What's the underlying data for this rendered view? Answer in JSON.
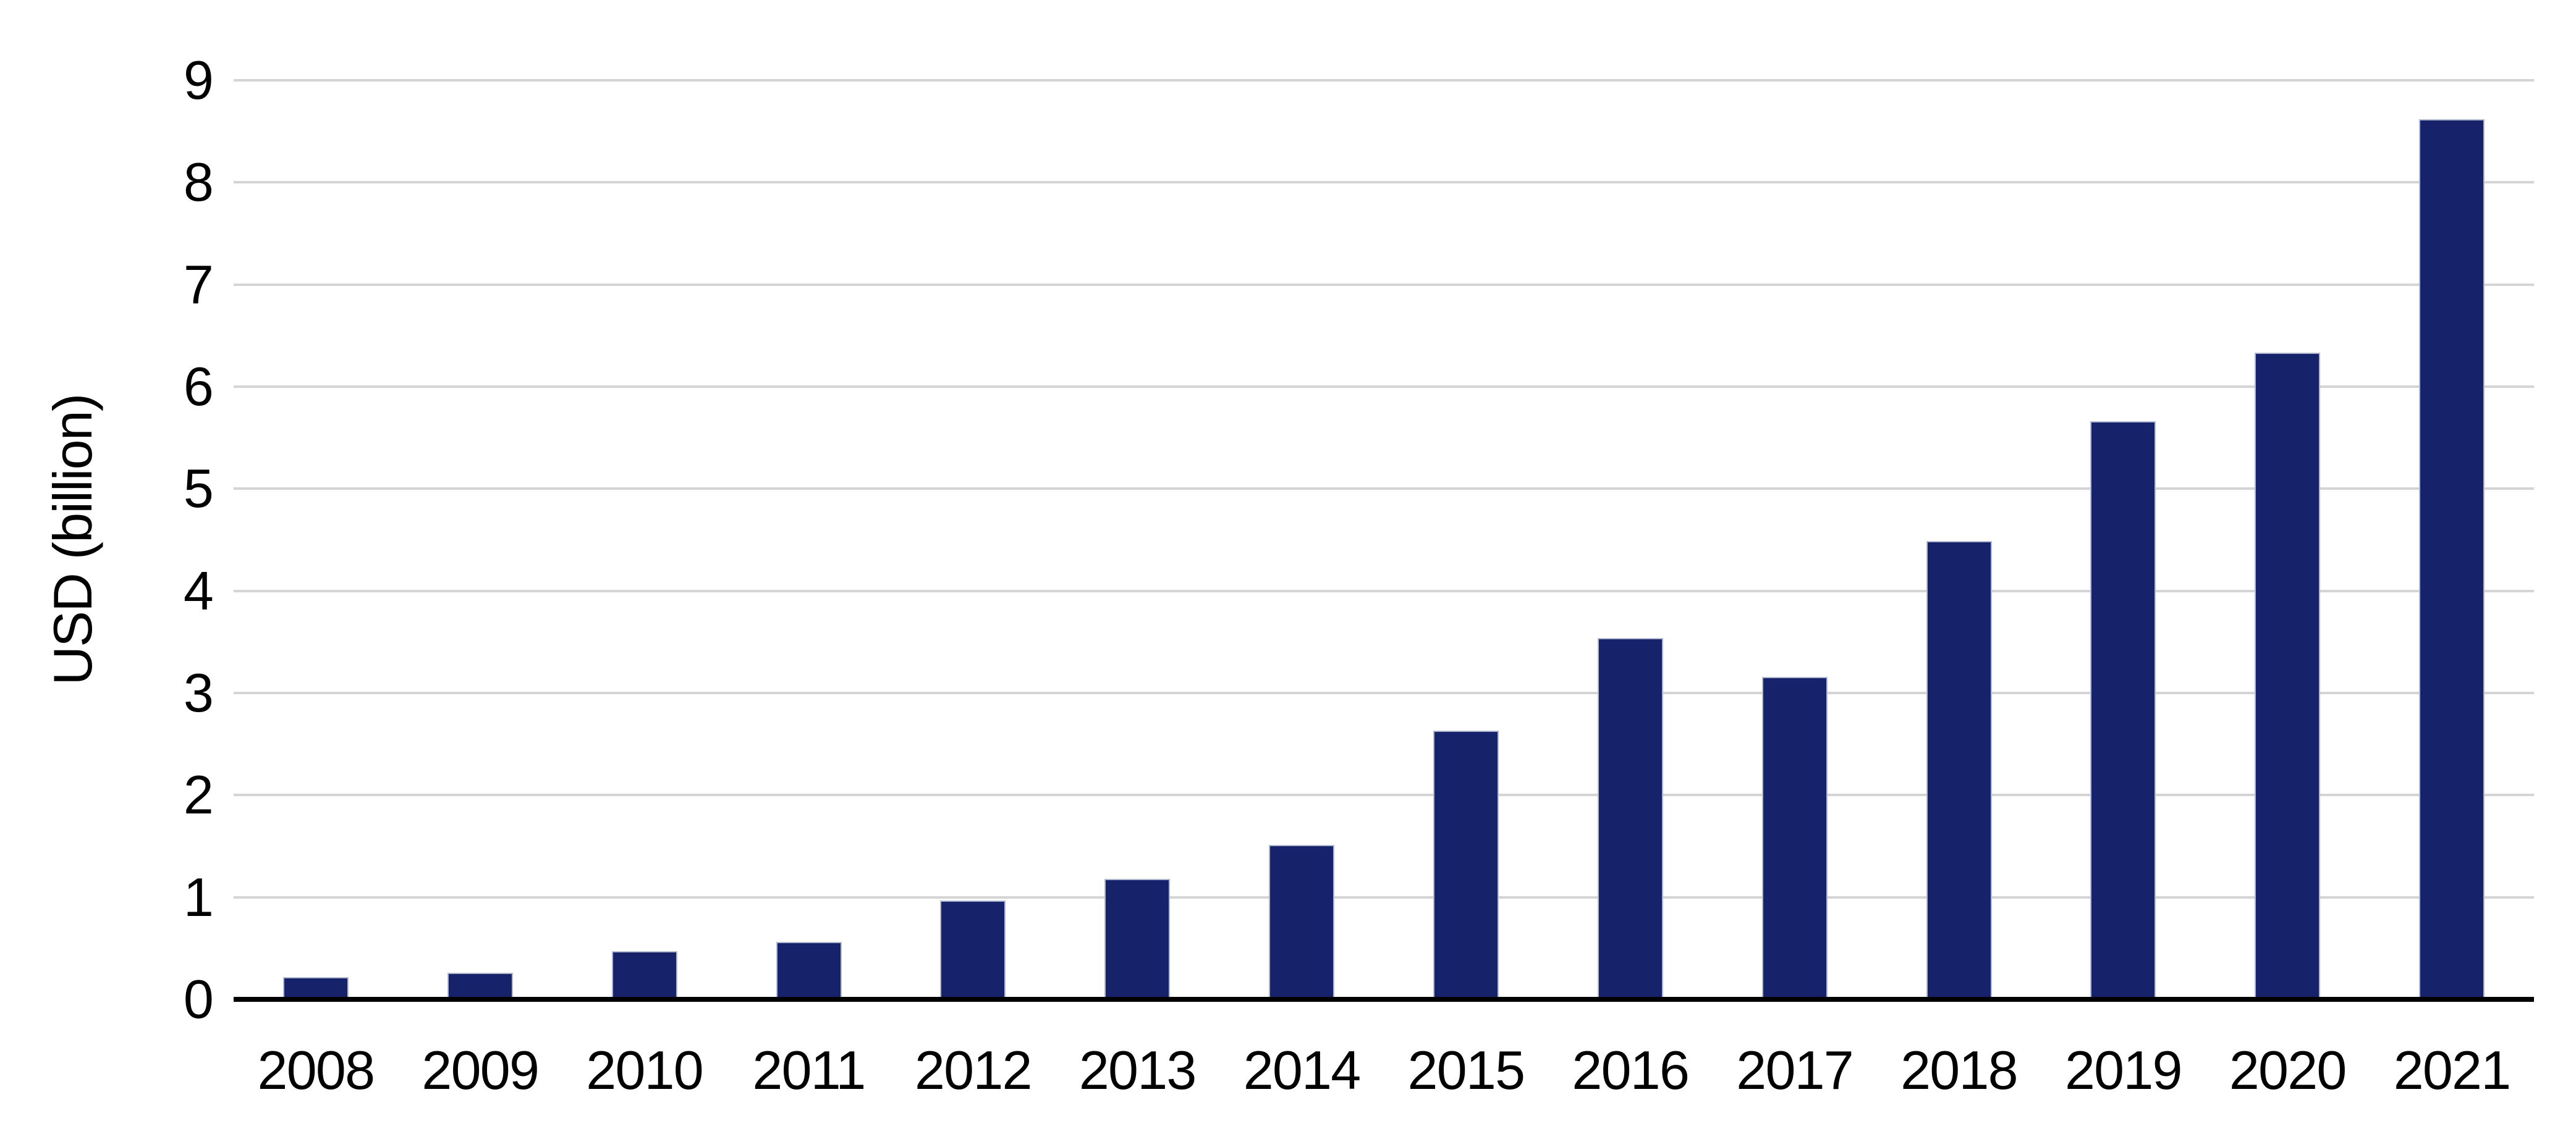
{
  "chart_data": {
    "type": "bar",
    "title": "",
    "xlabel": "",
    "ylabel": "USD (billion)",
    "categories": [
      "2008",
      "2009",
      "2010",
      "2011",
      "2012",
      "2013",
      "2014",
      "2015",
      "2016",
      "2017",
      "2018",
      "2019",
      "2020",
      "2021"
    ],
    "values": [
      0.22,
      0.26,
      0.47,
      0.56,
      0.97,
      1.18,
      1.51,
      2.63,
      3.54,
      3.16,
      4.49,
      5.66,
      6.33,
      8.62
    ],
    "ylim": [
      0,
      9
    ],
    "yticks": [
      0,
      1,
      2,
      3,
      4,
      5,
      6,
      7,
      8,
      9
    ],
    "grid": "horizontal-gridlines-on",
    "legend": "none",
    "colors": {
      "bar_fill": "#16236b",
      "bar_border": "#b2b7d0",
      "gridline": "#d4d4d4",
      "axis_line": "#000000",
      "text": "#000000",
      "background": "#ffffff"
    }
  }
}
